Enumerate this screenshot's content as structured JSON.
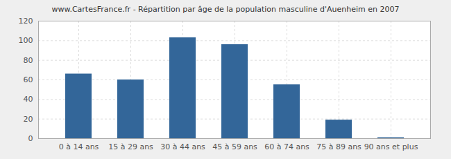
{
  "chart_data": {
    "type": "bar",
    "title": "www.CartesFrance.fr - Répartition par âge de la population masculine d'Auenheim en 2007",
    "categories": [
      "0 à 14 ans",
      "15 à 29 ans",
      "30 à 44 ans",
      "45 à 59 ans",
      "60 à 74 ans",
      "75 à 89 ans",
      "90 ans et plus"
    ],
    "values": [
      66,
      60,
      103,
      96,
      55,
      19,
      1
    ],
    "color": "#336699",
    "ylim": [
      0,
      120
    ],
    "yticks": [
      0,
      20,
      40,
      60,
      80,
      100,
      120
    ],
    "grid": true
  }
}
